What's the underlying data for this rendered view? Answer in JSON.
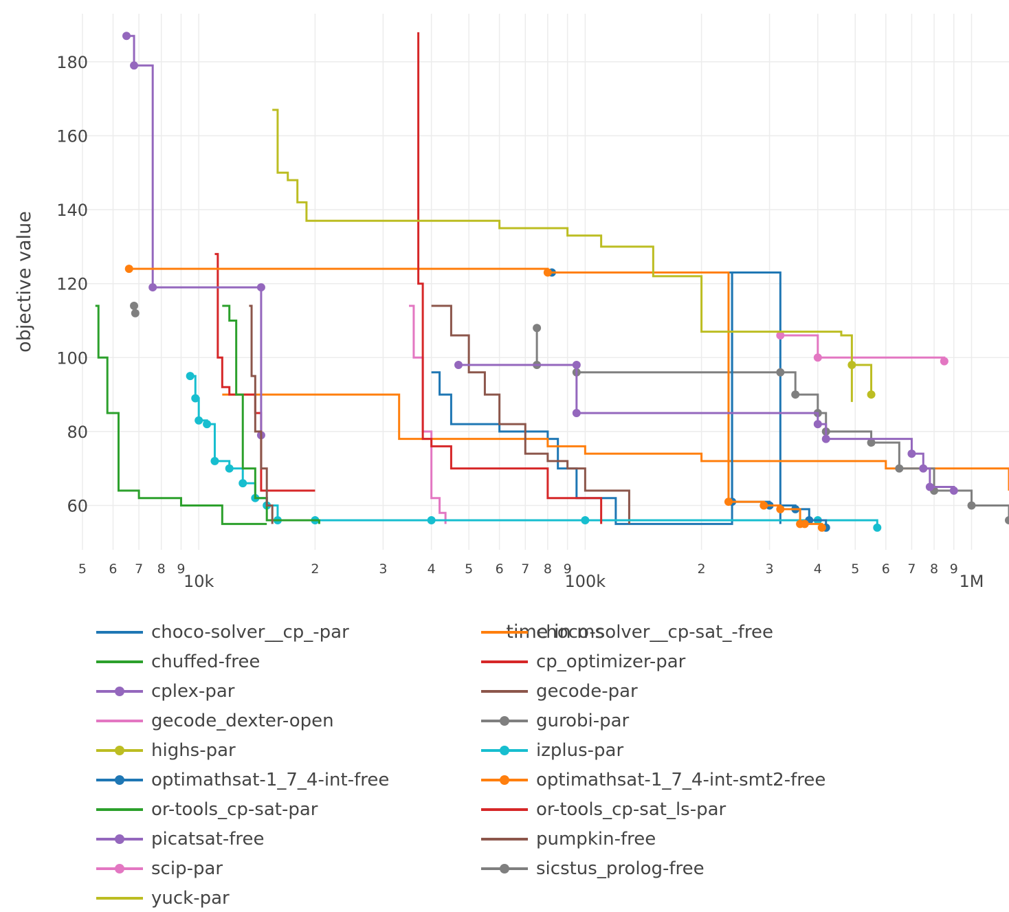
{
  "chart_data": {
    "type": "line",
    "xlabel": "time in ms",
    "ylabel": "objective value",
    "x_scale": "log",
    "xlim": [
      4800,
      1250000
    ],
    "ylim": [
      48,
      193
    ],
    "grid": true,
    "legend_position": "bottom",
    "x_major_ticks": [
      {
        "value": 10000,
        "label": "10k"
      },
      {
        "value": 100000,
        "label": "100k"
      },
      {
        "value": 1000000,
        "label": "1M"
      }
    ],
    "x_minor_ticks": [
      {
        "value": 5000,
        "label": "5"
      },
      {
        "value": 6000,
        "label": "6"
      },
      {
        "value": 7000,
        "label": "7"
      },
      {
        "value": 8000,
        "label": "8"
      },
      {
        "value": 9000,
        "label": "9"
      },
      {
        "value": 20000,
        "label": "2"
      },
      {
        "value": 30000,
        "label": "3"
      },
      {
        "value": 40000,
        "label": "4"
      },
      {
        "value": 50000,
        "label": "5"
      },
      {
        "value": 60000,
        "label": "6"
      },
      {
        "value": 70000,
        "label": "7"
      },
      {
        "value": 80000,
        "label": "8"
      },
      {
        "value": 90000,
        "label": "9"
      },
      {
        "value": 200000,
        "label": "2"
      },
      {
        "value": 300000,
        "label": "3"
      },
      {
        "value": 400000,
        "label": "4"
      },
      {
        "value": 500000,
        "label": "5"
      },
      {
        "value": 600000,
        "label": "6"
      },
      {
        "value": 700000,
        "label": "7"
      },
      {
        "value": 800000,
        "label": "8"
      },
      {
        "value": 900000,
        "label": "9"
      }
    ],
    "y_ticks": [
      60,
      80,
      100,
      120,
      140,
      160,
      180
    ],
    "series": [
      {
        "name": "choco-solver__cp_-par",
        "color": "#1f77b4",
        "markers": false,
        "x": [
          40000,
          42000,
          45000,
          60000,
          80000,
          85000,
          95000,
          120000,
          240000,
          240000,
          320000
        ],
        "y": [
          96,
          90,
          82,
          80,
          78,
          70,
          62,
          55,
          55,
          123,
          55
        ]
      },
      {
        "name": "choco-solver__cp-sat_-free",
        "color": "#ff7f0e",
        "markers": false,
        "x": [
          11500,
          30000,
          33000,
          80000,
          100000,
          200000,
          600000,
          1000000,
          1200000,
          1250000
        ],
        "y": [
          90,
          90,
          78,
          76,
          74,
          72,
          70,
          70,
          70,
          64
        ]
      },
      {
        "name": "chuffed-free",
        "color": "#2ca02c",
        "markers": false,
        "x": [
          5400,
          5500,
          5800,
          6200,
          7000,
          9000,
          11000,
          11500,
          12000,
          15000
        ],
        "y": [
          114,
          100,
          85,
          64,
          62,
          60,
          60,
          55,
          55,
          55
        ]
      },
      {
        "name": "cp_optimizer-par",
        "color": "#d62728",
        "markers": false,
        "x": [
          11000,
          11200,
          11500,
          12000,
          13000,
          14000,
          14500,
          15000,
          20000
        ],
        "y": [
          128,
          100,
          92,
          90,
          90,
          85,
          64,
          64,
          64
        ]
      },
      {
        "name": "cplex-par",
        "color": "#9467bd",
        "markers": true,
        "x": [
          6500,
          6800,
          7600,
          14500,
          14500
        ],
        "y": [
          187,
          179,
          119,
          119,
          79
        ]
      },
      {
        "name": "gecode-par",
        "color": "#8c564b",
        "markers": false,
        "x": [
          40000,
          45000,
          50000,
          55000,
          60000,
          70000,
          80000,
          90000,
          100000,
          120000,
          130000
        ],
        "y": [
          114,
          106,
          96,
          90,
          82,
          74,
          72,
          70,
          64,
          64,
          55
        ]
      },
      {
        "name": "gecode_dexter-open",
        "color": "#e377c2",
        "markers": false,
        "x": [
          35000,
          36000,
          38000,
          40000,
          42000,
          43500
        ],
        "y": [
          114,
          100,
          80,
          62,
          58,
          55
        ]
      },
      {
        "name": "gurobi-par",
        "color": "#7f7f7f",
        "markers": true,
        "x": [
          75000,
          75000,
          95000,
          320000,
          350000,
          400000,
          420000,
          550000,
          650000,
          800000,
          1000000,
          1250000
        ],
        "y": [
          108,
          98,
          96,
          96,
          90,
          85,
          80,
          77,
          70,
          64,
          60,
          56
        ]
      },
      {
        "name": "highs-par",
        "color": "#bcbd22",
        "markers": true,
        "x": [
          490000,
          550000
        ],
        "y": [
          98,
          90
        ]
      },
      {
        "name": "izplus-par",
        "color": "#17becf",
        "markers": true,
        "x": [
          9500,
          9800,
          10000,
          10500,
          11000,
          12000,
          13000,
          14000,
          15000,
          16000,
          20000,
          40000,
          100000,
          400000,
          570000
        ],
        "y": [
          95,
          89,
          83,
          82,
          72,
          70,
          66,
          62,
          60,
          56,
          56,
          56,
          56,
          56,
          54
        ]
      },
      {
        "name": "optimathsat-1_7_4-int-free",
        "color": "#1f77b4",
        "markers": true,
        "x": [
          82000,
          240000,
          300000,
          350000,
          380000,
          420000
        ],
        "y": [
          123,
          61,
          60,
          59,
          56,
          54
        ]
      },
      {
        "name": "optimathsat-1_7_4-int-smt2-free",
        "color": "#ff7f0e",
        "markers": true,
        "x": [
          6600,
          80000,
          235000,
          290000,
          320000,
          360000,
          370000,
          410000
        ],
        "y": [
          124,
          123,
          61,
          60,
          59,
          55,
          55,
          54
        ]
      },
      {
        "name": "or-tools_cp-sat-par",
        "color": "#2ca02c",
        "markers": false,
        "x": [
          11500,
          12000,
          12500,
          13000,
          14000,
          15000,
          20500
        ],
        "y": [
          114,
          110,
          90,
          70,
          62,
          56,
          55
        ]
      },
      {
        "name": "or-tools_cp-sat_ls-par",
        "color": "#d62728",
        "markers": false,
        "x": [
          37000,
          37000,
          38000,
          40000,
          45000,
          75000,
          80000,
          100000,
          110000
        ],
        "y": [
          188,
          120,
          78,
          76,
          70,
          70,
          62,
          62,
          55
        ]
      },
      {
        "name": "picatsat-free",
        "color": "#9467bd",
        "markers": true,
        "x": [
          47000,
          95000,
          95000,
          400000,
          420000,
          700000,
          750000,
          780000,
          900000
        ],
        "y": [
          98,
          98,
          85,
          82,
          78,
          74,
          70,
          65,
          64
        ]
      },
      {
        "name": "pumpkin-free",
        "color": "#8c564b",
        "markers": false,
        "x": [
          13500,
          13700,
          14000,
          14500,
          15000,
          15500
        ],
        "y": [
          114,
          95,
          80,
          70,
          60,
          55
        ]
      },
      {
        "name": "scip-par",
        "color": "#e377c2",
        "markers": true,
        "x": [
          320000,
          400000,
          850000
        ],
        "y": [
          106,
          100,
          99
        ]
      },
      {
        "name": "sicstus_prolog-free",
        "color": "#7f7f7f",
        "markers": true,
        "x": [
          6800,
          6850
        ],
        "y": [
          114,
          112
        ]
      },
      {
        "name": "yuck-par",
        "color": "#bcbd22",
        "markers": false,
        "x": [
          15500,
          16000,
          17000,
          18000,
          19000,
          20500,
          30000,
          40000,
          60000,
          90000,
          110000,
          150000,
          200000,
          300000,
          420000,
          460000,
          490000
        ],
        "y": [
          167,
          150,
          148,
          142,
          137,
          137,
          137,
          137,
          135,
          133,
          130,
          122,
          107,
          107,
          107,
          106,
          88
        ]
      }
    ]
  }
}
